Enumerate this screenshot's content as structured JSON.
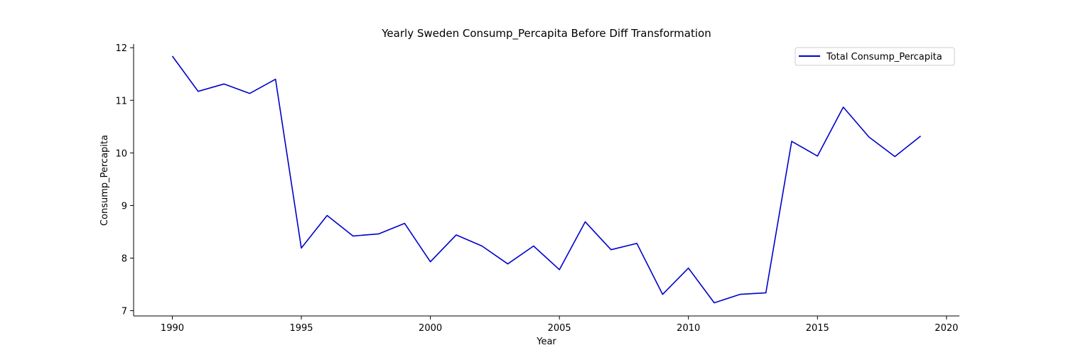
{
  "chart_data": {
    "type": "line",
    "title": "Yearly Sweden Consump_Percapita Before Diff Transformation",
    "xlabel": "Year",
    "ylabel": "Consump_Percapita",
    "xlim": [
      1988.5,
      2020.5
    ],
    "ylim": [
      6.9,
      12.07
    ],
    "xticks": [
      1990,
      1995,
      2000,
      2005,
      2010,
      2015,
      2020
    ],
    "yticks": [
      7,
      8,
      9,
      10,
      11,
      12
    ],
    "grid": false,
    "legend_position": "top-right",
    "colors": {
      "series": "#0000cc"
    },
    "series": [
      {
        "name": "Total Consump_Percapita",
        "x": [
          1990,
          1991,
          1992,
          1993,
          1994,
          1995,
          1996,
          1997,
          1998,
          1999,
          2000,
          2001,
          2002,
          2003,
          2004,
          2005,
          2006,
          2007,
          2008,
          2009,
          2010,
          2011,
          2012,
          2013,
          2014,
          2015,
          2016,
          2017,
          2018,
          2019
        ],
        "y": [
          11.84,
          11.17,
          11.31,
          11.13,
          11.4,
          8.19,
          8.81,
          8.42,
          8.46,
          8.66,
          7.93,
          8.44,
          8.23,
          7.89,
          8.23,
          7.78,
          8.69,
          8.16,
          8.28,
          7.31,
          7.81,
          7.15,
          7.31,
          7.34,
          10.22,
          9.94,
          10.87,
          10.3,
          9.93,
          10.32
        ]
      }
    ]
  }
}
